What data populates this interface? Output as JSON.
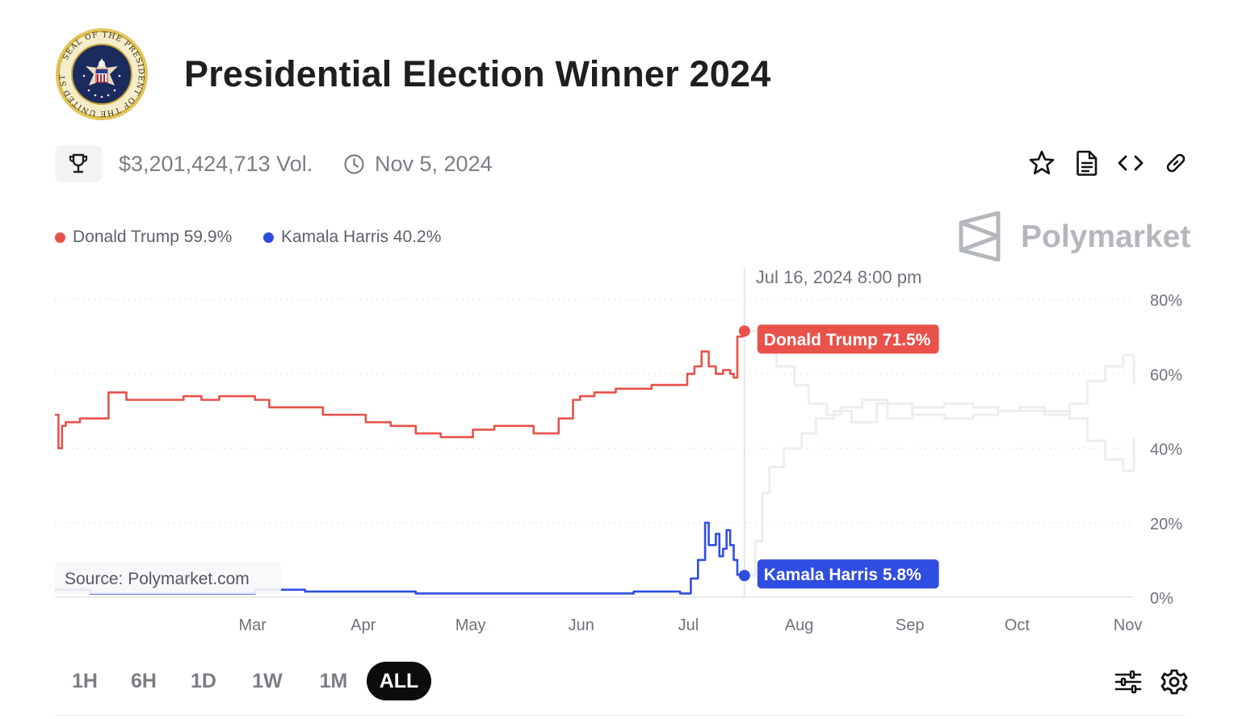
{
  "header": {
    "title": "Presidential Election Winner 2024",
    "seal_text": "SEAL OF THE PRESIDENT OF THE UNITED STATES"
  },
  "meta": {
    "volume": "$3,201,424,713 Vol.",
    "end_date": "Nov 5, 2024"
  },
  "toolbar": {
    "icons": [
      "star-icon",
      "document-icon",
      "code-icon",
      "link-icon"
    ]
  },
  "legend": [
    {
      "label": "Donald Trump 59.9%",
      "color": "#e8524a"
    },
    {
      "label": "Kamala Harris 40.2%",
      "color": "#2f4de0"
    }
  ],
  "watermark": {
    "text": "Polymarket"
  },
  "chart_data": {
    "type": "line",
    "hover": {
      "date": "Jul 16, 2024 8:00 pm",
      "labels": [
        "Donald Trump 71.5%",
        "Kamala Harris 5.8%"
      ]
    },
    "source": "Source: Polymarket.com",
    "x_ticks": [
      "Mar",
      "Apr",
      "May",
      "Jun",
      "Jul",
      "Aug",
      "Sep",
      "Oct",
      "Nov"
    ],
    "y_ticks": [
      "80%",
      "60%",
      "40%",
      "20%",
      "0%"
    ],
    "ylim": [
      0,
      80
    ],
    "grid": true,
    "series": [
      {
        "name": "Donald Trump",
        "color": "#e8524a",
        "x": [
          "2024-01-05",
          "2024-01-06",
          "2024-01-07",
          "2024-01-08",
          "2024-01-12",
          "2024-01-15",
          "2024-01-20",
          "2024-01-25",
          "2024-02-01",
          "2024-02-10",
          "2024-02-15",
          "2024-02-20",
          "2024-03-01",
          "2024-03-05",
          "2024-03-10",
          "2024-03-20",
          "2024-04-01",
          "2024-04-08",
          "2024-04-15",
          "2024-04-22",
          "2024-04-28",
          "2024-05-01",
          "2024-05-07",
          "2024-05-12",
          "2024-05-18",
          "2024-05-25",
          "2024-05-29",
          "2024-05-31",
          "2024-06-04",
          "2024-06-10",
          "2024-06-17",
          "2024-06-20",
          "2024-06-27",
          "2024-06-30",
          "2024-07-02",
          "2024-07-04",
          "2024-07-06",
          "2024-07-08",
          "2024-07-10",
          "2024-07-12",
          "2024-07-13",
          "2024-07-14",
          "2024-07-16"
        ],
        "y": [
          49,
          40,
          46,
          47,
          48,
          48,
          55,
          53,
          53,
          54,
          53,
          54,
          53,
          51,
          51,
          49,
          47,
          46,
          44,
          43,
          43,
          45,
          46,
          46,
          44,
          48,
          53,
          54,
          55,
          56,
          56,
          57,
          57,
          60,
          62,
          66,
          62,
          60,
          61,
          60,
          59,
          70,
          71.5
        ]
      },
      {
        "name": "Kamala Harris",
        "color": "#2f4de0",
        "x": [
          "2024-01-05",
          "2024-01-15",
          "2024-01-25",
          "2024-02-10",
          "2024-02-20",
          "2024-03-01",
          "2024-03-15",
          "2024-04-01",
          "2024-04-15",
          "2024-05-01",
          "2024-05-15",
          "2024-06-01",
          "2024-06-15",
          "2024-06-25",
          "2024-06-28",
          "2024-07-01",
          "2024-07-03",
          "2024-07-05",
          "2024-07-06",
          "2024-07-08",
          "2024-07-09",
          "2024-07-10",
          "2024-07-11",
          "2024-07-12",
          "2024-07-13",
          "2024-07-14",
          "2024-07-15",
          "2024-07-16"
        ],
        "y": [
          2,
          1,
          1,
          1,
          1,
          2,
          1.5,
          1.5,
          1,
          1,
          1,
          1,
          1.5,
          1.5,
          1,
          5,
          10,
          20,
          14,
          17,
          11,
          13,
          18,
          14,
          10,
          6,
          5.5,
          5.8
        ]
      },
      {
        "name": "Donald Trump",
        "color": "#eeeef0",
        "x": [
          "2024-07-16",
          "2024-07-20",
          "2024-07-25",
          "2024-07-30",
          "2024-08-03",
          "2024-08-08",
          "2024-08-12",
          "2024-08-18",
          "2024-08-25",
          "2024-09-01",
          "2024-09-10",
          "2024-09-18",
          "2024-09-25",
          "2024-10-01",
          "2024-10-08",
          "2024-10-15",
          "2024-10-20",
          "2024-10-25",
          "2024-10-30",
          "2024-11-02"
        ],
        "y": [
          71.5,
          66,
          62,
          57,
          52,
          49,
          51,
          53,
          48,
          51,
          52,
          51,
          50,
          51,
          49,
          52,
          58,
          62,
          65,
          57
        ]
      },
      {
        "name": "Kamala Harris",
        "color": "#eeeef0",
        "x": [
          "2024-07-16",
          "2024-07-19",
          "2024-07-21",
          "2024-07-23",
          "2024-07-27",
          "2024-08-01",
          "2024-08-05",
          "2024-08-10",
          "2024-08-15",
          "2024-08-22",
          "2024-09-01",
          "2024-09-10",
          "2024-09-18",
          "2024-09-25",
          "2024-10-01",
          "2024-10-08",
          "2024-10-15",
          "2024-10-20",
          "2024-10-25",
          "2024-10-30",
          "2024-11-02"
        ],
        "y": [
          5.8,
          15,
          28,
          35,
          40,
          44,
          48,
          50,
          47,
          52,
          49,
          48,
          49,
          50,
          50,
          50,
          48,
          42,
          37,
          34,
          43
        ]
      }
    ]
  }
}
